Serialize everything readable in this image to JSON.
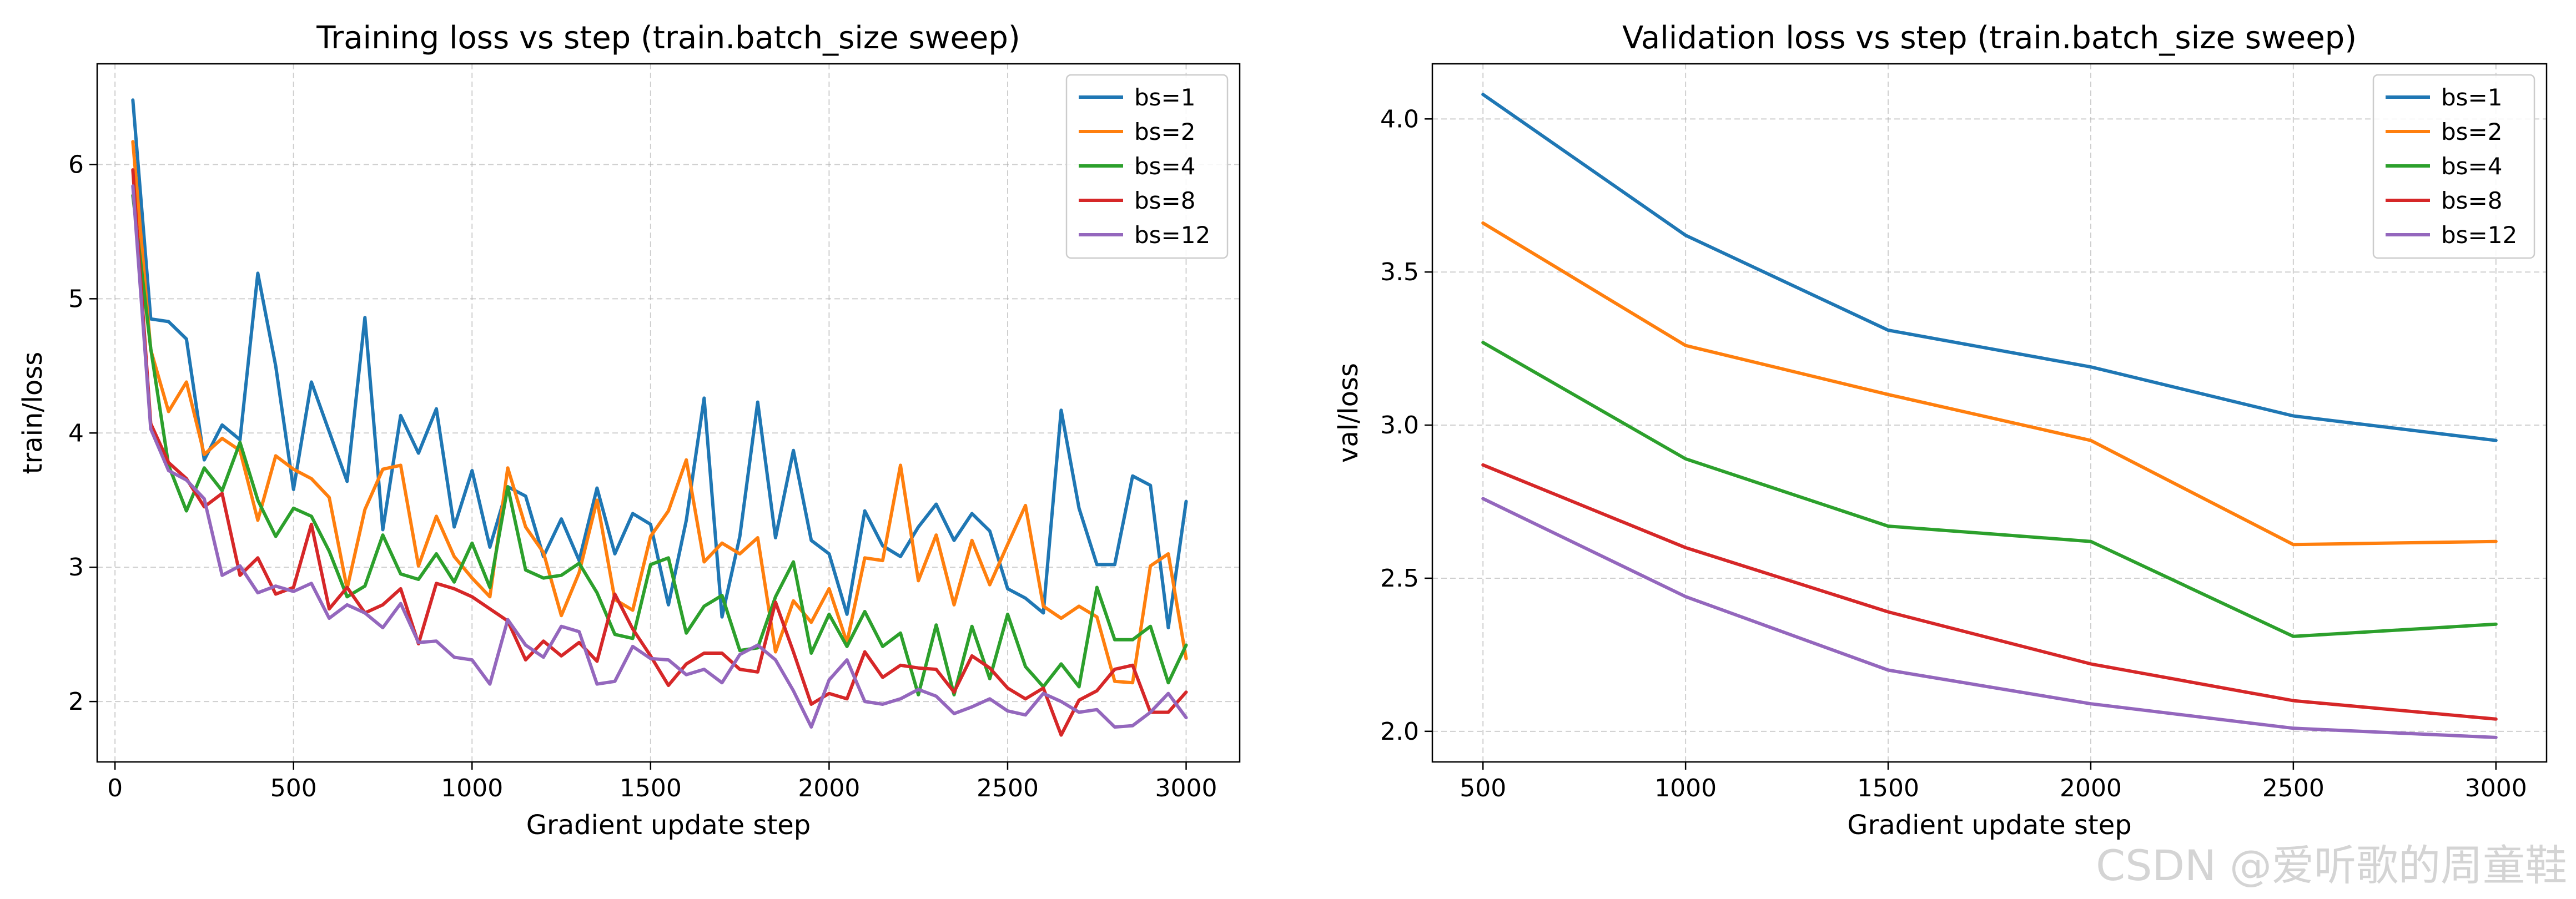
{
  "watermark": "CSDN @爱听歌的周童鞋",
  "series_colors": [
    "#1f77b4",
    "#ff7f0e",
    "#2ca02c",
    "#d62728",
    "#9467bd"
  ],
  "chart_data": [
    {
      "type": "line",
      "title": "Training loss vs step (train.batch_size sweep)",
      "xlabel": "Gradient update step",
      "ylabel": "train/loss",
      "xlim": [
        -50,
        3150
      ],
      "ylim": [
        1.55,
        6.75
      ],
      "xticks": [
        0,
        500,
        1000,
        1500,
        2000,
        2500,
        3000
      ],
      "yticks": [
        2,
        3,
        4,
        5,
        6
      ],
      "grid": true,
      "legend": "top-right",
      "x": [
        50,
        100,
        150,
        200,
        250,
        300,
        350,
        400,
        450,
        500,
        550,
        600,
        650,
        700,
        750,
        800,
        850,
        900,
        950,
        1000,
        1050,
        1100,
        1150,
        1200,
        1250,
        1300,
        1350,
        1400,
        1450,
        1500,
        1550,
        1600,
        1650,
        1700,
        1750,
        1800,
        1850,
        1900,
        1950,
        2000,
        2050,
        2100,
        2150,
        2200,
        2250,
        2300,
        2350,
        2400,
        2450,
        2500,
        2550,
        2600,
        2650,
        2700,
        2750,
        2800,
        2850,
        2900,
        2950,
        3000
      ],
      "series": [
        {
          "name": "bs=1",
          "values": [
            6.48,
            4.85,
            4.83,
            4.7,
            3.8,
            4.06,
            3.95,
            5.19,
            4.5,
            3.58,
            4.38,
            4.01,
            3.64,
            4.86,
            3.28,
            4.13,
            3.85,
            4.18,
            3.3,
            3.72,
            3.15,
            3.6,
            3.53,
            3.08,
            3.36,
            3.05,
            3.59,
            3.1,
            3.4,
            3.32,
            2.72,
            3.35,
            4.26,
            2.63,
            3.23,
            4.23,
            3.22,
            3.87,
            3.2,
            3.1,
            2.65,
            3.42,
            3.16,
            3.08,
            3.3,
            3.47,
            3.2,
            3.4,
            3.27,
            2.84,
            2.77,
            2.66,
            4.17,
            3.44,
            3.02,
            3.02,
            3.68,
            3.61,
            2.55,
            3.49
          ]
        },
        {
          "name": "bs=2",
          "values": [
            6.17,
            4.62,
            4.16,
            4.38,
            3.84,
            3.96,
            3.87,
            3.35,
            3.83,
            3.73,
            3.66,
            3.52,
            2.84,
            3.43,
            3.73,
            3.76,
            3.01,
            3.38,
            3.08,
            2.92,
            2.78,
            3.74,
            3.3,
            3.11,
            2.64,
            2.96,
            3.5,
            2.76,
            2.68,
            3.23,
            3.42,
            3.8,
            3.04,
            3.18,
            3.1,
            3.22,
            2.37,
            2.75,
            2.59,
            2.84,
            2.44,
            3.07,
            3.05,
            3.76,
            2.9,
            3.24,
            2.72,
            3.2,
            2.87,
            3.17,
            3.46,
            2.71,
            2.62,
            2.71,
            2.63,
            2.15,
            2.14,
            3.01,
            3.1,
            2.32
          ]
        },
        {
          "name": "bs=4",
          "values": [
            5.77,
            4.63,
            3.76,
            3.42,
            3.74,
            3.57,
            3.93,
            3.5,
            3.23,
            3.44,
            3.38,
            3.12,
            2.78,
            2.86,
            3.24,
            2.95,
            2.91,
            3.1,
            2.89,
            3.18,
            2.85,
            3.6,
            2.98,
            2.92,
            2.94,
            3.03,
            2.81,
            2.5,
            2.47,
            3.02,
            3.07,
            2.51,
            2.71,
            2.79,
            2.38,
            2.4,
            2.78,
            3.04,
            2.36,
            2.65,
            2.41,
            2.67,
            2.41,
            2.51,
            2.05,
            2.57,
            2.05,
            2.56,
            2.17,
            2.65,
            2.26,
            2.11,
            2.28,
            2.11,
            2.85,
            2.46,
            2.46,
            2.56,
            2.14,
            2.42
          ]
        },
        {
          "name": "bs=8",
          "values": [
            5.96,
            4.07,
            3.78,
            3.66,
            3.45,
            3.55,
            2.94,
            3.07,
            2.8,
            2.85,
            3.32,
            2.69,
            2.85,
            2.66,
            2.72,
            2.84,
            2.43,
            2.88,
            2.84,
            2.78,
            2.69,
            2.6,
            2.31,
            2.45,
            2.34,
            2.44,
            2.3,
            2.8,
            2.54,
            2.34,
            2.12,
            2.28,
            2.36,
            2.36,
            2.24,
            2.22,
            2.74,
            2.37,
            1.98,
            2.06,
            2.02,
            2.37,
            2.18,
            2.27,
            2.25,
            2.24,
            2.07,
            2.34,
            2.25,
            2.1,
            2.02,
            2.1,
            1.75,
            2.01,
            2.08,
            2.24,
            2.27,
            1.92,
            1.92,
            2.07
          ]
        },
        {
          "name": "bs=12",
          "values": [
            5.84,
            4.03,
            3.72,
            3.65,
            3.51,
            2.94,
            3.01,
            2.81,
            2.86,
            2.82,
            2.88,
            2.62,
            2.72,
            2.66,
            2.55,
            2.73,
            2.44,
            2.45,
            2.33,
            2.31,
            2.13,
            2.61,
            2.42,
            2.33,
            2.56,
            2.52,
            2.13,
            2.15,
            2.41,
            2.32,
            2.31,
            2.2,
            2.24,
            2.14,
            2.35,
            2.42,
            2.31,
            2.08,
            1.81,
            2.16,
            2.31,
            2.0,
            1.98,
            2.02,
            2.09,
            2.04,
            1.91,
            1.96,
            2.02,
            1.93,
            1.9,
            2.06,
            2.0,
            1.92,
            1.94,
            1.81,
            1.82,
            1.92,
            2.06,
            1.88
          ]
        }
      ]
    },
    {
      "type": "line",
      "title": "Validation loss vs step (train.batch_size sweep)",
      "xlabel": "Gradient update step",
      "ylabel": "val/loss",
      "xlim": [
        375,
        3125
      ],
      "ylim": [
        1.9,
        4.18
      ],
      "xticks": [
        500,
        1000,
        1500,
        2000,
        2500,
        3000
      ],
      "yticks": [
        2.0,
        2.5,
        3.0,
        3.5,
        4.0
      ],
      "grid": true,
      "legend": "top-right",
      "x": [
        500,
        1000,
        1500,
        2000,
        2500,
        3000
      ],
      "series": [
        {
          "name": "bs=1",
          "values": [
            4.08,
            3.62,
            3.31,
            3.19,
            3.03,
            2.95
          ]
        },
        {
          "name": "bs=2",
          "values": [
            3.66,
            3.26,
            3.1,
            2.95,
            2.61,
            2.62
          ]
        },
        {
          "name": "bs=4",
          "values": [
            3.27,
            2.89,
            2.67,
            2.62,
            2.31,
            2.35
          ]
        },
        {
          "name": "bs=8",
          "values": [
            2.87,
            2.6,
            2.39,
            2.22,
            2.1,
            2.04
          ]
        },
        {
          "name": "bs=12",
          "values": [
            2.76,
            2.44,
            2.2,
            2.09,
            2.01,
            1.98
          ]
        }
      ]
    }
  ]
}
